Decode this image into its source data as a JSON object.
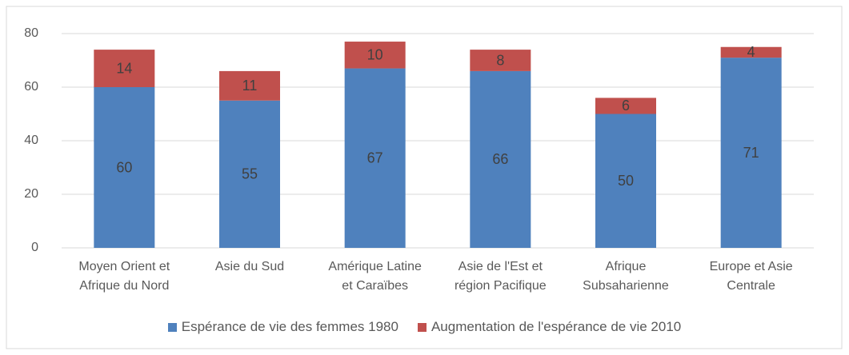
{
  "chart_data": {
    "type": "stacked_bar",
    "categories": [
      "Moyen Orient et\nAfrique du Nord",
      "Asie du Sud",
      "Amérique Latine\net Caraïbes",
      "Asie de l'Est et\nrégion Pacifique",
      "Afrique\nSubsaharienne",
      "Europe et Asie\nCentrale"
    ],
    "series": [
      {
        "name": "Espérance de vie des femmes 1980",
        "color": "#4f81bd",
        "values": [
          60,
          55,
          67,
          66,
          50,
          71
        ]
      },
      {
        "name": "Augmentation de l'espérance de vie 2010",
        "color": "#c0504d",
        "values": [
          14,
          11,
          10,
          8,
          6,
          4
        ]
      }
    ],
    "ylim": [
      0,
      80
    ],
    "yticks": [
      0,
      20,
      40,
      60,
      80
    ],
    "grid": true,
    "legend": "bottom"
  }
}
